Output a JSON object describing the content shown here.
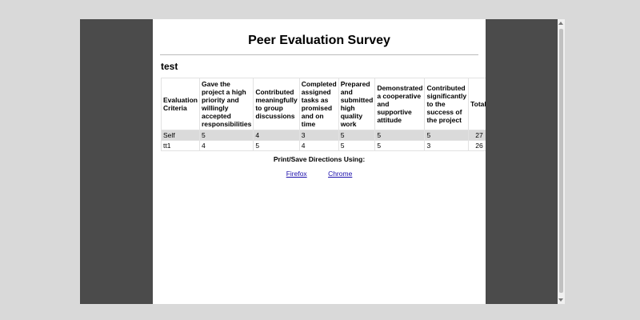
{
  "page": {
    "title": "Peer Evaluation Survey",
    "subtitle": "test"
  },
  "table": {
    "headers": [
      "Evaluation Criteria",
      "Gave the project a high priority and willingly accepted responsibilities",
      "Contributed meaningfully to group discussions",
      "Completed assigned tasks as promised and on time",
      "Prepared and submitted high quality work",
      "Demonstrated a cooperative and supportive attitude",
      "Contributed significantly to the success of the project",
      "Total"
    ],
    "rows": [
      [
        "Self",
        "5",
        "4",
        "3",
        "5",
        "5",
        "5",
        "27"
      ],
      [
        "tt1",
        "4",
        "5",
        "4",
        "5",
        "5",
        "3",
        "26"
      ]
    ]
  },
  "print": {
    "heading": "Print/Save Directions Using:",
    "links": [
      "Firefox",
      "Chrome"
    ]
  },
  "colors": {
    "frame_background": "#4b4b4b",
    "page_background": "#ffffff",
    "self_row_background": "#dadada",
    "link": "#1a0dab"
  }
}
